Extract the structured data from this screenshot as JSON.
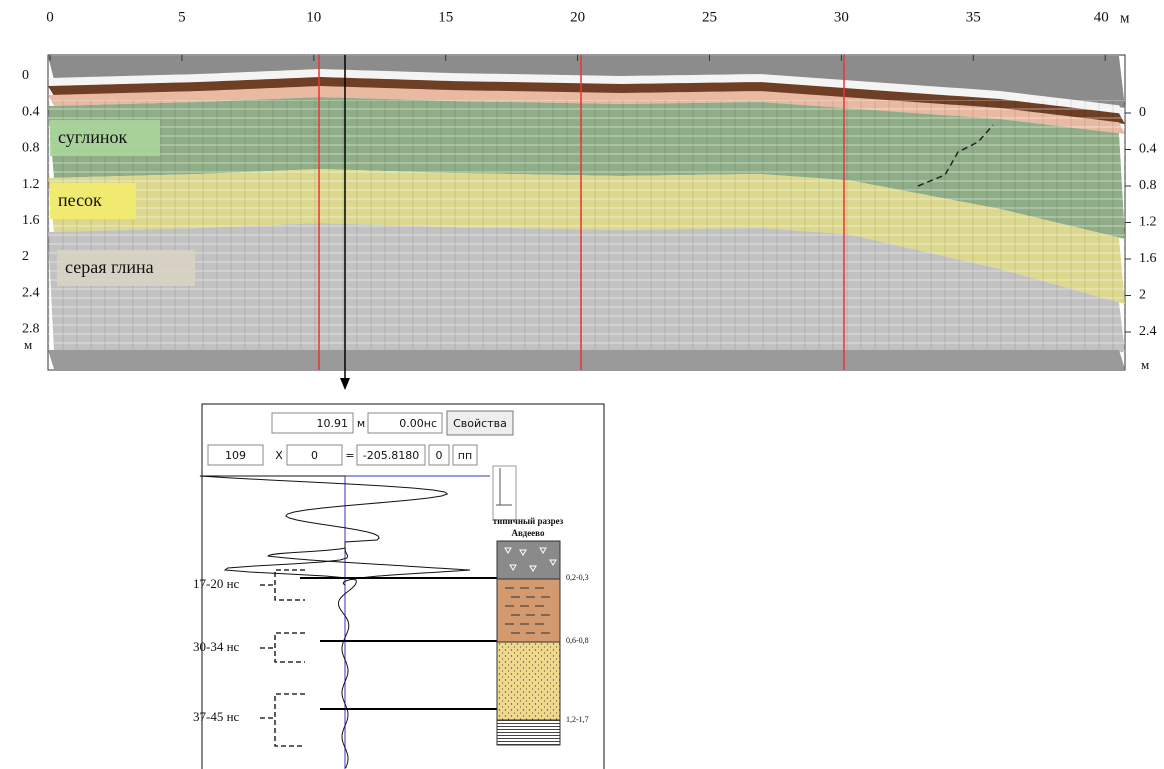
{
  "top_axis": {
    "ticks": [
      "0",
      "5",
      "10",
      "15",
      "20",
      "25",
      "30",
      "35",
      "40"
    ],
    "unit": "м"
  },
  "left_axis": {
    "ticks": [
      "0",
      "0.4",
      "0.8",
      "1.2",
      "1.6",
      "2",
      "2.4",
      "2.8"
    ],
    "unit": "м"
  },
  "right_axis": {
    "ticks": [
      "0",
      "0.4",
      "0.8",
      "1.2",
      "1.6",
      "2",
      "2.4"
    ],
    "unit": "м"
  },
  "layers": [
    "суглинок",
    "песок",
    "серая глина"
  ],
  "panel": {
    "distance": "10.91",
    "distance_unit": "м",
    "time": "0.00нс",
    "button": "Свойства",
    "row2": [
      "109",
      "X",
      "0",
      "=",
      "-205.8180",
      "0",
      "пп"
    ],
    "trace_labels": [
      "17-20 нс",
      "30-34 нс",
      "37-45 нс"
    ],
    "column_title": [
      "типичный разрез",
      "Авдеево"
    ],
    "column_depths": [
      "0,2-0,3",
      "0,6-0,8",
      "1,2-1,7"
    ]
  }
}
